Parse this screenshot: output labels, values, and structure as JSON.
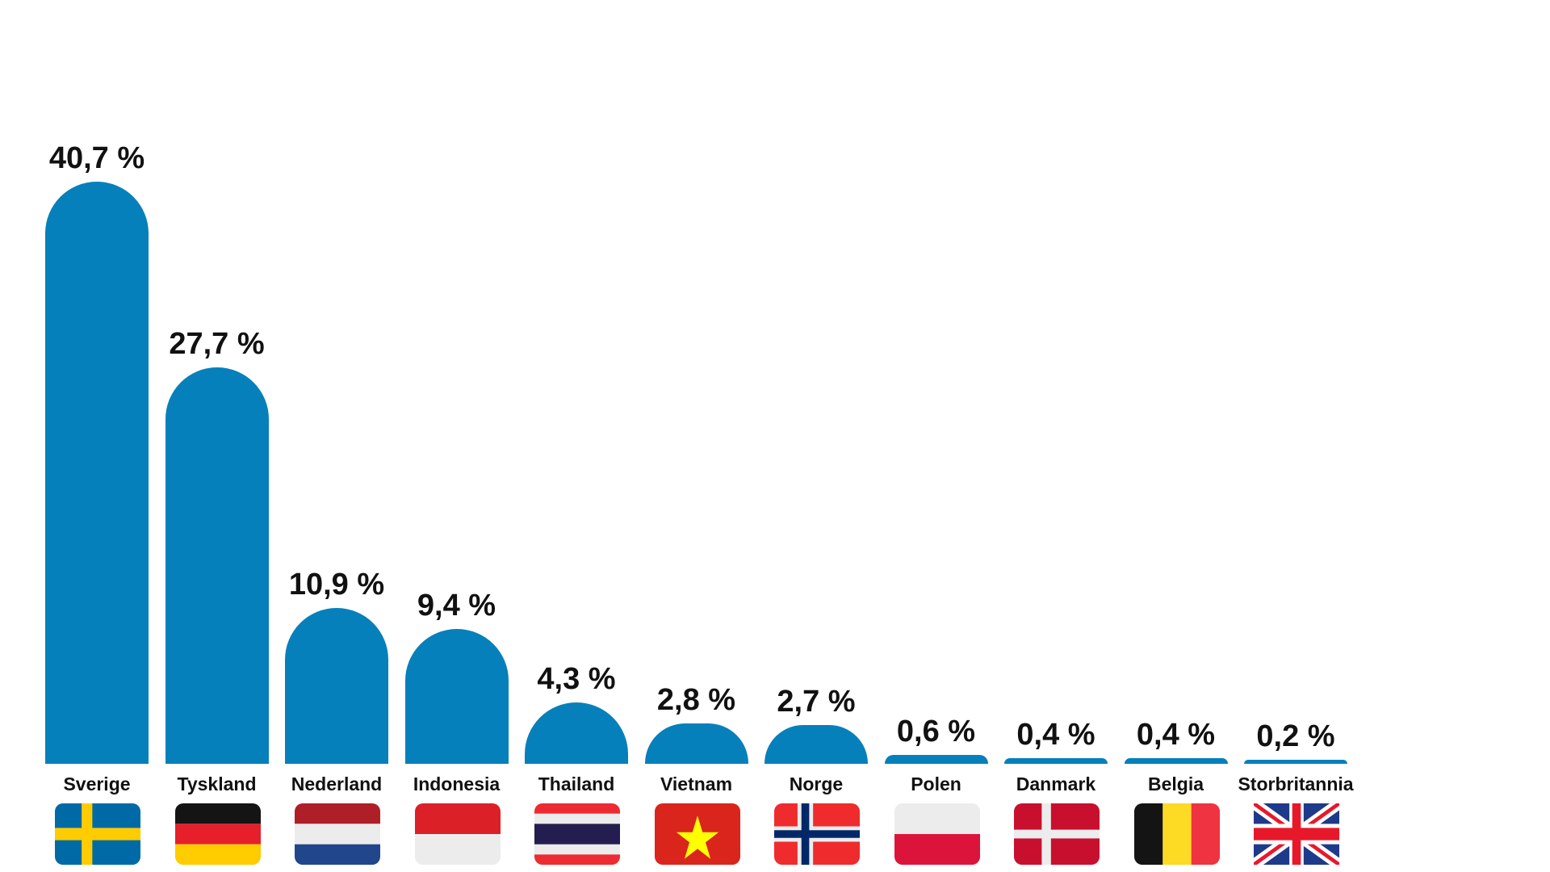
{
  "chart_data": {
    "type": "bar",
    "title": "",
    "xlabel": "",
    "ylabel": "",
    "ylim": [
      0,
      45
    ],
    "grid": false,
    "legend": null,
    "categories": [
      "Sverige",
      "Tyskland",
      "Nederland",
      "Indonesia",
      "Thailand",
      "Vietnam",
      "Norge",
      "Polen",
      "Danmark",
      "Belgia",
      "Storbritannia"
    ],
    "values": [
      40.7,
      27.7,
      10.9,
      9.4,
      4.3,
      2.8,
      2.7,
      0.6,
      0.4,
      0.4,
      0.2
    ],
    "value_labels": [
      "40,7 %",
      "27,7 %",
      "10,9 %",
      "9,4 %",
      "4,3 %",
      "2,8 %",
      "2,7 %",
      "0,6 %",
      "0,4 %",
      "0,4 %",
      "0,2 %"
    ],
    "bar_color": "#0680ba",
    "annotations": "Each category is shown with its national flag below the label"
  },
  "bars": [
    {
      "label": "Sverige",
      "value_text": "40,7 %",
      "flag": "sweden-flag-icon"
    },
    {
      "label": "Tyskland",
      "value_text": "27,7 %",
      "flag": "germany-flag-icon"
    },
    {
      "label": "Nederland",
      "value_text": "10,9 %",
      "flag": "netherlands-flag-icon"
    },
    {
      "label": "Indonesia",
      "value_text": "9,4 %",
      "flag": "indonesia-flag-icon"
    },
    {
      "label": "Thailand",
      "value_text": "4,3 %",
      "flag": "thailand-flag-icon"
    },
    {
      "label": "Vietnam",
      "value_text": "2,8 %",
      "flag": "vietnam-flag-icon"
    },
    {
      "label": "Norge",
      "value_text": "2,7 %",
      "flag": "norway-flag-icon"
    },
    {
      "label": "Polen",
      "value_text": "0,6 %",
      "flag": "poland-flag-icon"
    },
    {
      "label": "Danmark",
      "value_text": "0,4 %",
      "flag": "denmark-flag-icon"
    },
    {
      "label": "Belgia",
      "value_text": "0,4 %",
      "flag": "belgium-flag-icon"
    },
    {
      "label": "Storbritannia",
      "value_text": "0,2 %",
      "flag": "uk-flag-icon"
    }
  ]
}
